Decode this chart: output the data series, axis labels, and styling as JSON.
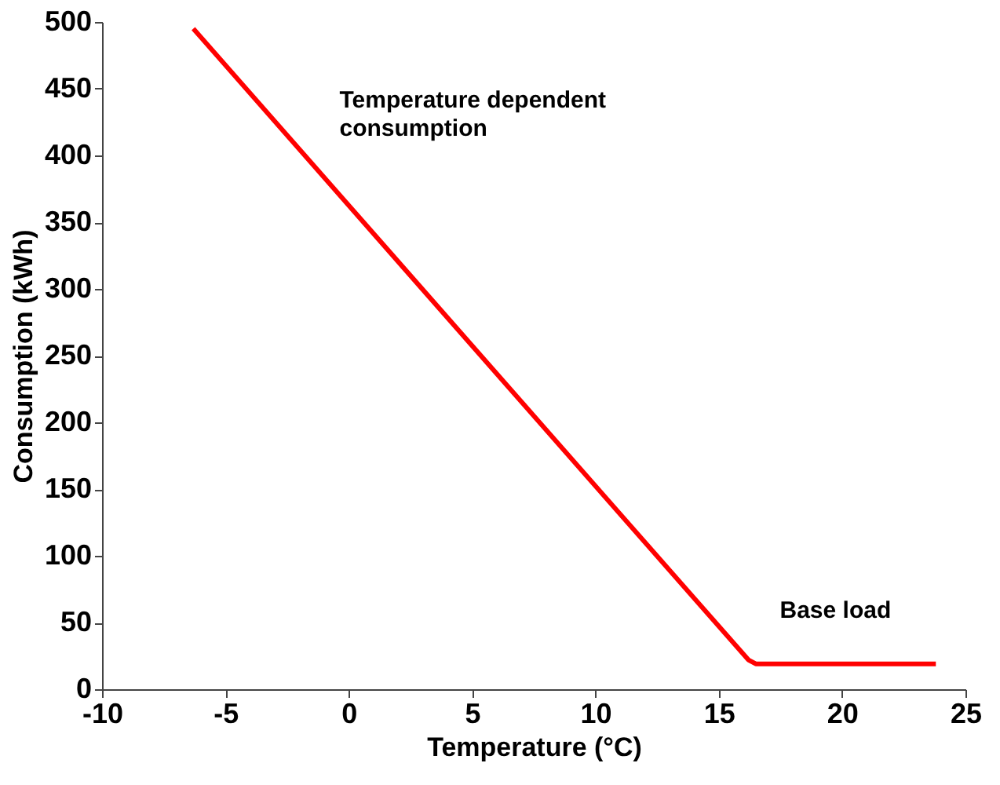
{
  "chart_data": {
    "type": "line",
    "xlabel": "Temperature (°C)",
    "ylabel": "Consumption (kWh)",
    "x": [
      -6.3,
      16.2,
      16.5,
      23.8
    ],
    "series": [
      {
        "color": "#ff0000",
        "values": [
          495,
          22,
          19,
          19
        ]
      }
    ],
    "xlim": [
      -10,
      25
    ],
    "xticks": [
      -10,
      -5,
      0,
      5,
      10,
      15,
      20,
      25
    ],
    "ylim": [
      0,
      500
    ],
    "yticks": [
      0,
      50,
      100,
      150,
      200,
      250,
      300,
      350,
      400,
      450,
      500
    ],
    "grid": false,
    "marker": "none",
    "line_style": "solid",
    "annotations": [
      "Temperature dependent\nconsumption",
      "Base load"
    ]
  }
}
